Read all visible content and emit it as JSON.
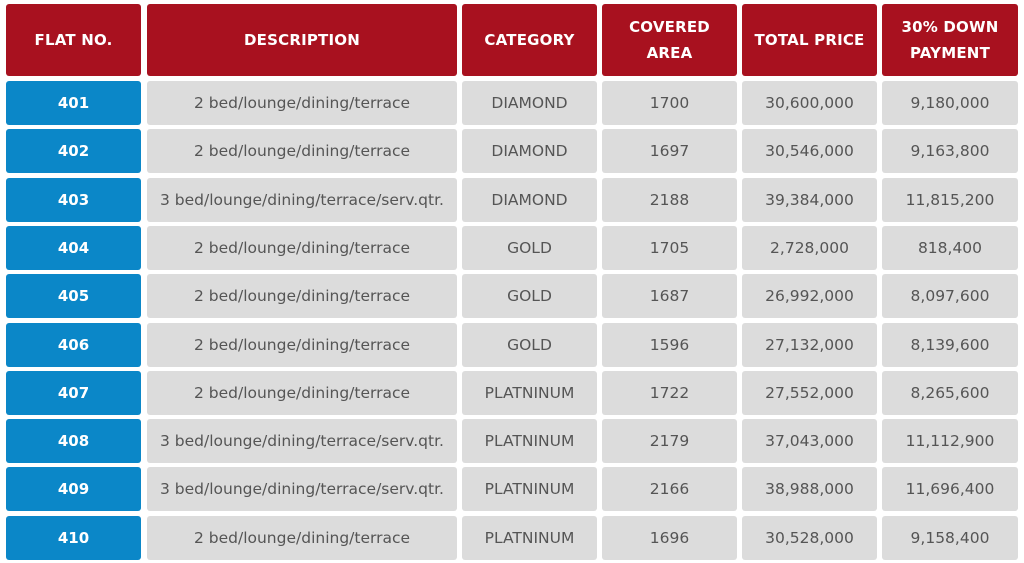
{
  "table": {
    "columns": [
      "FLAT NO.",
      "DESCRIPTION",
      "CATEGORY",
      "COVERED AREA",
      "TOTAL PRICE",
      "30% DOWN PAYMENT"
    ],
    "rows": [
      [
        "401",
        "2 bed/lounge/dining/terrace",
        "DIAMOND",
        "1700",
        "30,600,000",
        "9,180,000"
      ],
      [
        "402",
        "2 bed/lounge/dining/terrace",
        "DIAMOND",
        "1697",
        "30,546,000",
        "9,163,800"
      ],
      [
        "403",
        "3 bed/lounge/dining/terrace/serv.qtr.",
        "DIAMOND",
        "2188",
        "39,384,000",
        "11,815,200"
      ],
      [
        "404",
        "2 bed/lounge/dining/terrace",
        "GOLD",
        "1705",
        "2,728,000",
        "818,400"
      ],
      [
        "405",
        "2 bed/lounge/dining/terrace",
        "GOLD",
        "1687",
        "26,992,000",
        "8,097,600"
      ],
      [
        "406",
        "2 bed/lounge/dining/terrace",
        "GOLD",
        "1596",
        "27,132,000",
        "8,139,600"
      ],
      [
        "407",
        "2 bed/lounge/dining/terrace",
        "PLATNINUM",
        "1722",
        "27,552,000",
        "8,265,600"
      ],
      [
        "408",
        "3 bed/lounge/dining/terrace/serv.qtr.",
        "PLATNINUM",
        "2179",
        "37,043,000",
        "11,112,900"
      ],
      [
        "409",
        "3 bed/lounge/dining/terrace/serv.qtr.",
        "PLATNINUM",
        "2166",
        "38,988,000",
        "11,696,400"
      ],
      [
        "410",
        "2 bed/lounge/dining/terrace",
        "PLATNINUM",
        "1696",
        "30,528,000",
        "9,158,400"
      ]
    ]
  }
}
